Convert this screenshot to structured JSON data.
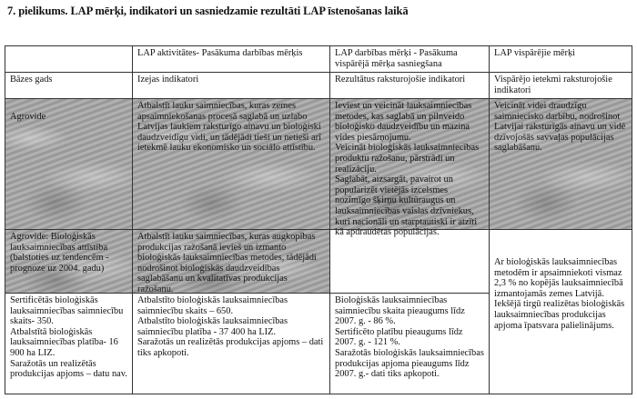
{
  "title": "7.  pielikums. LAP mērķi, indikatori un sasniedzamie rezultāti LAP īstenošanas laikā",
  "header": {
    "col1": "",
    "col2": "LAP aktivitātes- Pasākuma darbības mērķis",
    "col3": "LAP darbības mērķi - Pasākuma vispārējā mērķa sasniegšana",
    "col4": "LAP vispārējie mērķi"
  },
  "subheader": {
    "col1": "Bāzes gads",
    "col2": "Izejas indikatori",
    "col3": "Rezultātus raksturojošie indikatori",
    "col4": "Vispārējo ietekmi raksturojošie indikatori"
  },
  "agrovide": {
    "col1": "Agrovide",
    "col2": "Atbalstīt lauku saimniecības, kuras zemes apsaimniekošanas procesā saglabā un uzlabo Latvijas laukiem raksturīgo ainavu un bioloģiski daudzveidīgu vidi, un tādējādi tieši un netieši arī ietekmē lauku ekonomisko un sociālo attīstību.",
    "col3": [
      "Ieviest un veicināt lauksaimniecības metodes, kas saglabā un pilnveido bioloģisko daudzveidību un mazina vides piesārņojumu.",
      "Veicināt bioloģiskās lauksaimniecības produktu ražošanu, pārstrādi un realizāciju.",
      "Saglabāt, aizsargāt, pavairot un popularizēt vietējās izcelsmes nozīmīgo šķirņu kultūraugus un lauksaimniecības vaislas dzīvniekus, kuri nacionāli un starptautiski ir atzīti kā apdraudētas populācijas."
    ],
    "col4": "Veicināt videi draudzīgu saimniecisko darbību, nodrošinot Latvijai raksturīgās ainavu un vidē dzīvojošās savvaļas populācijas saglabāšanu."
  },
  "bio": {
    "col1": "Agrovide: Bioloģiskās lauksaimniecības attīstība (balstoties uz tendencēm - prognoze uz 2004. gadu)",
    "col2": "Atbalstīt lauku saimniecības, kuras augkopības produkcijas ražošanā ievieš un izmanto bioloģiskās lauksaimniecības metodes, tādējādi nodrošinot bioloģiskās daudzveidības saglabāšanu un kvalitatīvas produkcijas ražošanu.",
    "col3": "",
    "col4": [
      "Ar bioloģiskās lauksaimniecības metodēm ir apsaimniekoti vismaz 2,3 % no kopējās lauksaimniecībā izmantojamās zemes Latvijā.",
      "Iekšējā tirgū realizētas bioloģiskās lauksaimniecības produkcijas apjoma īpatsvara palielinājums."
    ]
  },
  "indicators": {
    "col1": [
      "Sertificētās bioloģiskās lauksaimniecības saimniecību skaits- 350.",
      "Atbalstītā bioloģiskās lauksaimniecības platība- 16 900 ha LIZ.",
      "Saražotās un realizētās produkcijas apjoms – datu nav."
    ],
    "col2": [
      "Atbalstīto bioloģiskās lauksaimniecības saimniecību skaits – 650.",
      "Atbalstīto bioloģiskās lauksaimniecības saimniecību platība - 37 400 ha LIZ.",
      "Saražotās un realizētās produkcijas apjoms – dati tiks apkopoti."
    ],
    "col3": [
      "Bioloģiskās lauksaimniecības saimniecību skaita pieaugums līdz 2007. g. - 86 %.",
      "Sertificēto platību pieaugums līdz 2007. g. - 121 %.",
      "Saražotās bioloģiskās lauksaimniecības produkcijas apjoma pieaugums līdz 2007. g.- dati tiks apkopoti."
    ]
  }
}
